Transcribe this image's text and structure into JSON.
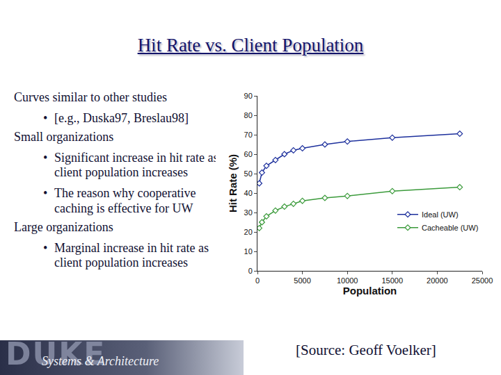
{
  "slide": {
    "title": "Hit Rate vs. Client Population",
    "items": [
      {
        "text": "Curves similar to other studies",
        "bullets": [
          "[e.g., Duska97, Breslau98]"
        ]
      },
      {
        "text": "Small organizations",
        "bullets": [
          "Significant increase in hit rate as client population increases",
          "The reason why cooperative caching is effective for UW"
        ]
      },
      {
        "text": "Large organizations",
        "bullets": [
          "Marginal increase in hit rate as client population increases"
        ]
      }
    ],
    "source": "[Source: Geoff Voelker]",
    "footer": {
      "logo": "DUKE",
      "subtitle": "Systems & Architecture"
    }
  },
  "chart_data": {
    "type": "line",
    "x_label": "Population",
    "y_label": "Hit Rate (%)",
    "x": [
      200,
      500,
      1000,
      2000,
      3000,
      4000,
      5000,
      7500,
      10000,
      15000,
      22500
    ],
    "series": [
      {
        "name": "Ideal (UW)",
        "color": "#1c2f9c",
        "marker": "diamond",
        "line_style": "solid",
        "values": [
          45,
          50.5,
          54,
          57,
          60,
          62,
          63,
          65,
          66.5,
          68.5,
          70.5
        ]
      },
      {
        "name": "Cacheable (UW)",
        "color": "#3a9a3a",
        "marker": "diamond",
        "line_style": "solid",
        "values": [
          22,
          25,
          28,
          31,
          33,
          34.5,
          36,
          37.5,
          38.5,
          41,
          43
        ]
      }
    ],
    "xlim": [
      0,
      25000
    ],
    "xticks": [
      0,
      5000,
      10000,
      15000,
      20000,
      25000
    ],
    "ylim": [
      0,
      90
    ],
    "yticks": [
      0,
      10,
      20,
      30,
      40,
      50,
      60,
      70,
      80,
      90
    ],
    "grid": false,
    "legend": "lower right"
  }
}
